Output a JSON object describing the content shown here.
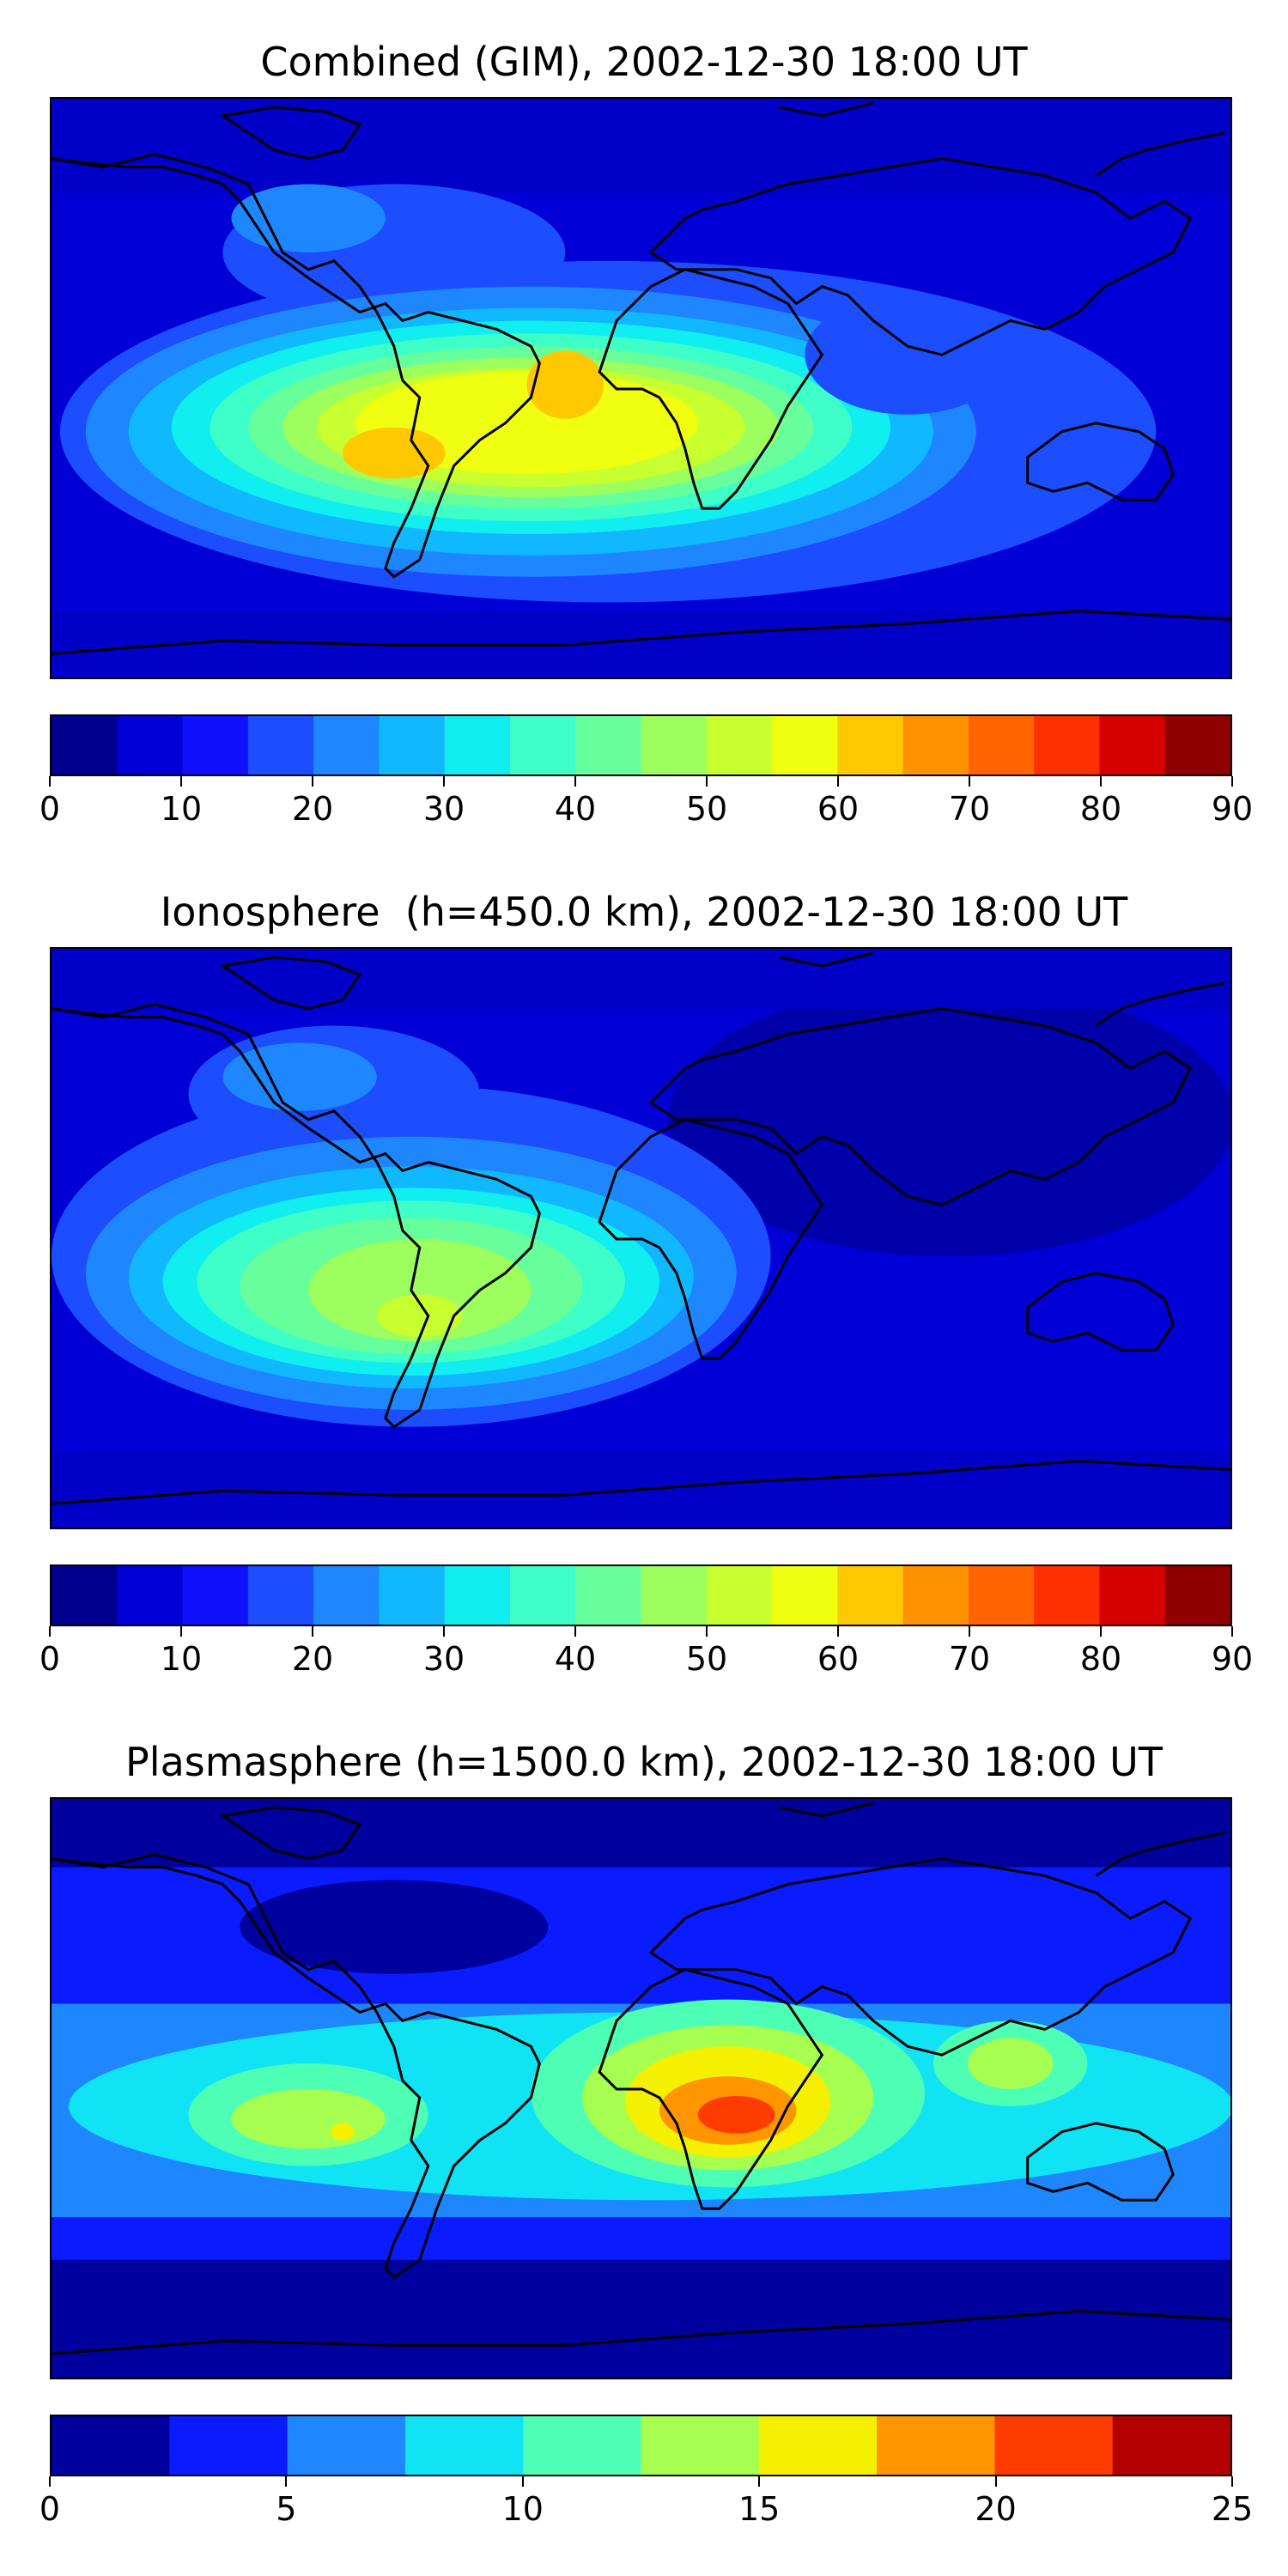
{
  "panels": [
    {
      "title": "Combined (GIM), 2002-12-30 18:00 UT",
      "colorbar": {
        "colors": [
          "#00008f",
          "#0000d6",
          "#1010ff",
          "#1c4dff",
          "#1e86ff",
          "#10b8ff",
          "#10eef0",
          "#3effc8",
          "#67ff9c",
          "#9cff5e",
          "#c8ff2e",
          "#f0ff10",
          "#ffc800",
          "#ff9200",
          "#ff6400",
          "#ff3000",
          "#d60000",
          "#8f0000"
        ],
        "ticks": [
          "0",
          "10",
          "20",
          "30",
          "40",
          "50",
          "60",
          "70",
          "80",
          "90"
        ]
      }
    },
    {
      "title": "Ionosphere  (h=450.0 km), 2002-12-30 18:00 UT",
      "colorbar": {
        "colors": [
          "#00008f",
          "#0000d6",
          "#1010ff",
          "#1c4dff",
          "#1e86ff",
          "#10b8ff",
          "#10eef0",
          "#3effc8",
          "#67ff9c",
          "#9cff5e",
          "#c8ff2e",
          "#f0ff10",
          "#ffc800",
          "#ff9200",
          "#ff6400",
          "#ff3000",
          "#d60000",
          "#8f0000"
        ],
        "ticks": [
          "0",
          "10",
          "20",
          "30",
          "40",
          "50",
          "60",
          "70",
          "80",
          "90"
        ]
      }
    },
    {
      "title": "Plasmasphere (h=1500.0 km), 2002-12-30 18:00 UT",
      "colorbar": {
        "colors": [
          "#00009f",
          "#0a1cff",
          "#1e86ff",
          "#10e4f4",
          "#4dffb4",
          "#a6ff50",
          "#f4f000",
          "#ff9600",
          "#ff3c00",
          "#b40000"
        ],
        "ticks": [
          "0",
          "5",
          "10",
          "15",
          "20",
          "25"
        ]
      }
    }
  ]
}
